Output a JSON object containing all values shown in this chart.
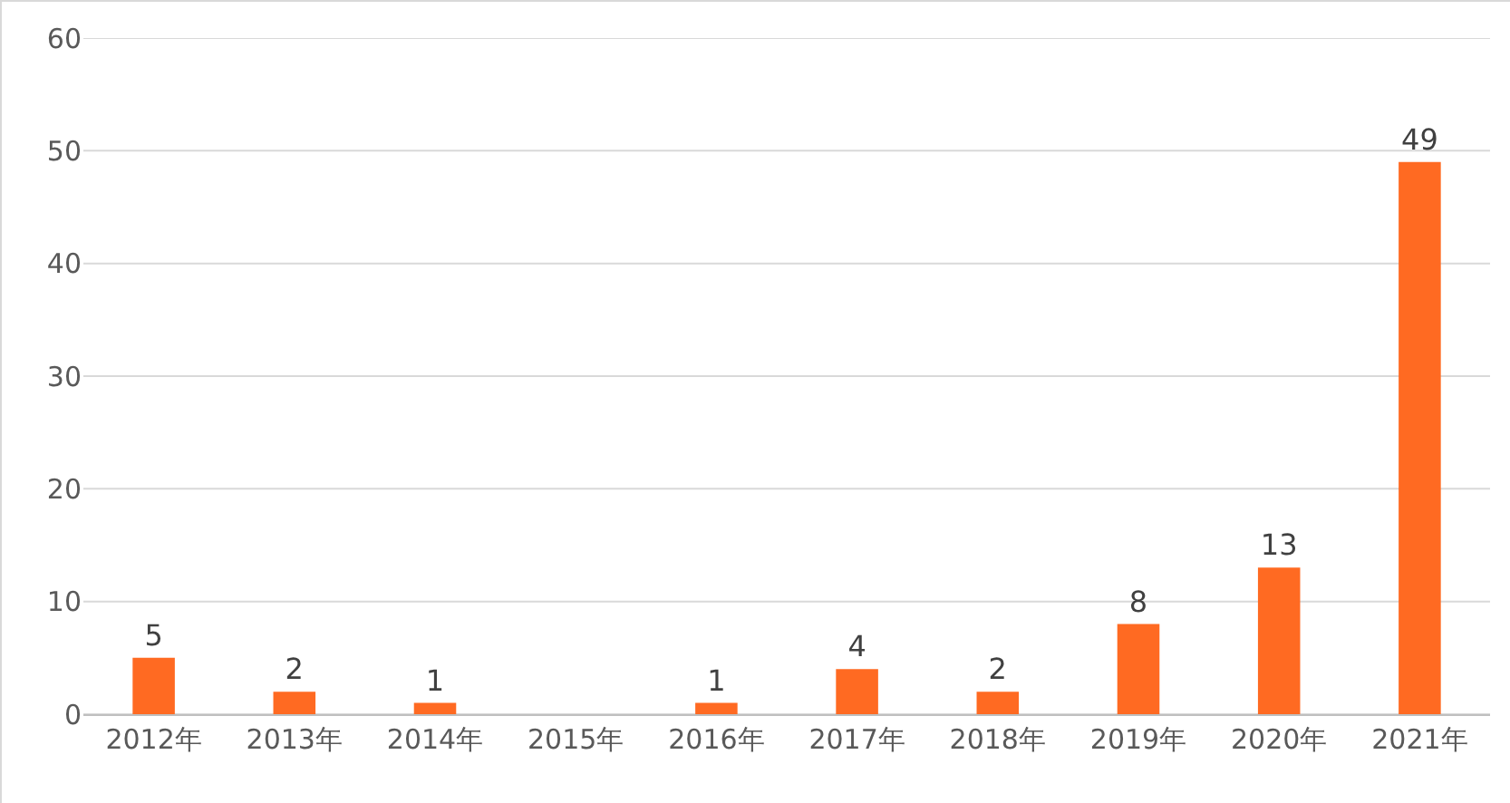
{
  "chart_data": {
    "type": "bar",
    "categories": [
      "2012年",
      "2013年",
      "2014年",
      "2015年",
      "2016年",
      "2017年",
      "2018年",
      "2019年",
      "2020年",
      "2021年"
    ],
    "values": [
      5,
      2,
      1,
      null,
      1,
      4,
      2,
      8,
      13,
      49
    ],
    "value_labels": [
      "5",
      "2",
      "1",
      null,
      "1",
      "4",
      "2",
      "8",
      "13",
      "49"
    ],
    "color": "#ff6a22",
    "ylim": [
      0,
      60
    ],
    "yticks": [
      0,
      10,
      20,
      30,
      40,
      50,
      60
    ],
    "grid": "y"
  }
}
